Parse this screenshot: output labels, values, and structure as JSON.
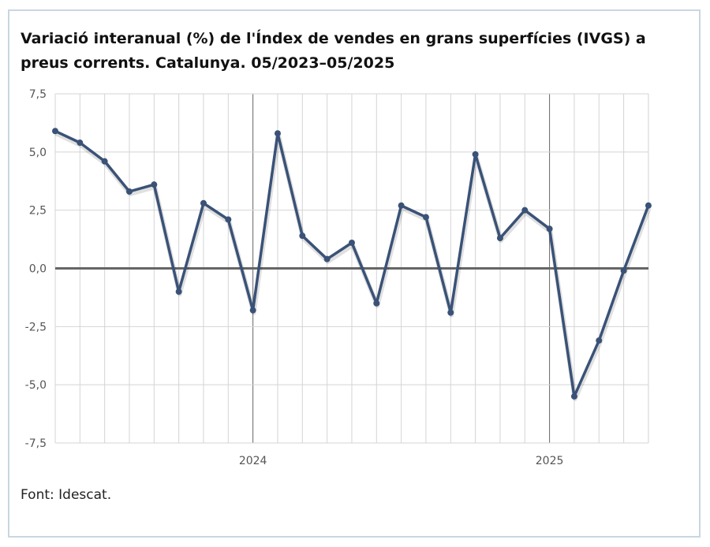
{
  "chart_data": {
    "type": "line",
    "title": "Variació interanual (%) de l'Índex de vendes en grans superfícies (IVGS) a preus corrents. Catalunya. 05/2023–05/2025",
    "xlabel": "",
    "ylabel": "",
    "ylim": [
      -7.5,
      7.5
    ],
    "yticks": [
      "7,5",
      "5,0",
      "2,5",
      "0,0",
      "-2,5",
      "-5,0",
      "-7,5"
    ],
    "ytick_values": [
      7.5,
      5.0,
      2.5,
      0.0,
      -2.5,
      -5.0,
      -7.5
    ],
    "x_tick_labels": [
      {
        "label": "2024",
        "month": "2024-01"
      },
      {
        "label": "2025",
        "month": "2025-01"
      }
    ],
    "x": [
      "2023-05",
      "2023-06",
      "2023-07",
      "2023-08",
      "2023-09",
      "2023-10",
      "2023-11",
      "2023-12",
      "2024-01",
      "2024-02",
      "2024-03",
      "2024-04",
      "2024-05",
      "2024-06",
      "2024-07",
      "2024-08",
      "2024-09",
      "2024-10",
      "2024-11",
      "2024-12",
      "2025-01",
      "2025-02",
      "2025-03",
      "2025-04",
      "2025-05"
    ],
    "series": [
      {
        "values": [
          5.9,
          5.4,
          4.6,
          3.3,
          3.6,
          -1.0,
          2.8,
          2.1,
          -1.8,
          5.8,
          1.4,
          0.4,
          1.1,
          -1.5,
          2.7,
          2.2,
          -1.9,
          4.9,
          1.3,
          2.5,
          1.7,
          -5.5,
          -3.1,
          -0.1,
          2.7
        ],
        "color": "#3a5277"
      }
    ],
    "grid": true,
    "legend": "none"
  },
  "footer": {
    "source": "Font: Idescat."
  }
}
